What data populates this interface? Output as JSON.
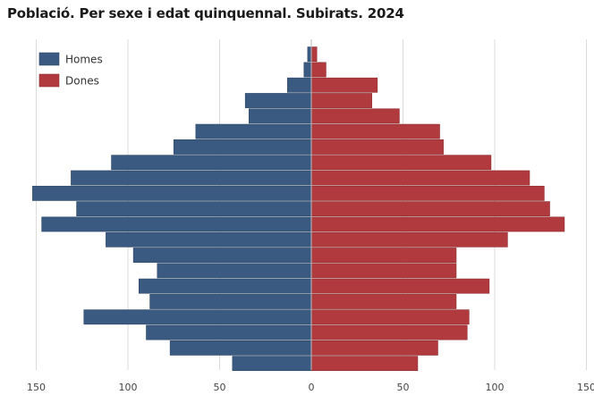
{
  "title": "Població. Per sexe i edat quinquennal. Subirats. 2024",
  "chart_data": {
    "type": "bar",
    "orientation": "horizontal-pyramid",
    "title": "Població. Per sexe i edat quinquennal. Subirats. 2024",
    "xlim": [
      -150,
      150
    ],
    "x_ticks": [
      -150,
      -100,
      -50,
      0,
      50,
      100,
      150
    ],
    "x_tick_labels": [
      "150",
      "100",
      "50",
      "0",
      "50",
      "100",
      "150"
    ],
    "grid": true,
    "legend_position": "top-left",
    "series": [
      {
        "name": "Homes",
        "color": "#3b5a82",
        "values": [
          2,
          4,
          13,
          36,
          34,
          63,
          75,
          109,
          131,
          152,
          128,
          147,
          112,
          97,
          84,
          94,
          88,
          124,
          90,
          77,
          43
        ]
      },
      {
        "name": "Dones",
        "color": "#b03a3e",
        "values": [
          3,
          8,
          36,
          33,
          48,
          70,
          72,
          98,
          119,
          127,
          130,
          138,
          107,
          79,
          79,
          97,
          79,
          86,
          85,
          69,
          58
        ]
      }
    ]
  }
}
